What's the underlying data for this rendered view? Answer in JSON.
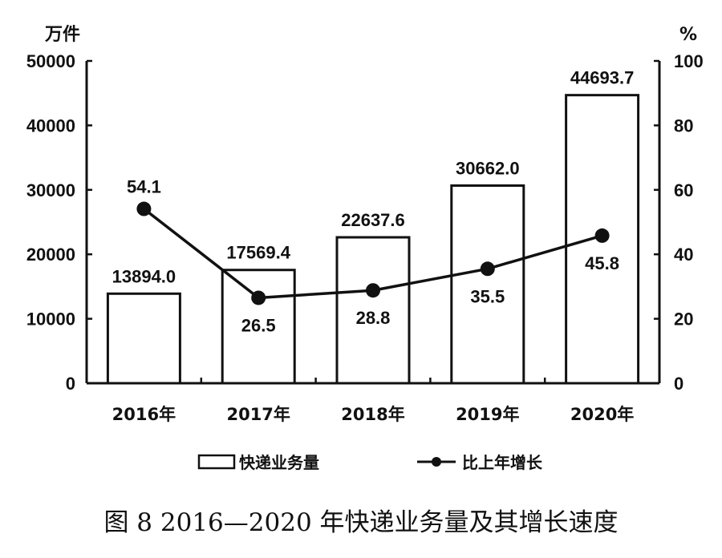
{
  "chart_data": {
    "type": "bar+line",
    "title": "图 8 2016—2020 年快递业务量及其增长速度",
    "categories": [
      "2016年",
      "2017年",
      "2018年",
      "2019年",
      "2020年"
    ],
    "series": [
      {
        "name": "快递业务量",
        "type": "bar",
        "axis": "left",
        "values": [
          13894.0,
          17569.4,
          22637.6,
          30662.0,
          44693.7
        ],
        "labels": [
          "13894.0",
          "17569.4",
          "22637.6",
          "30662.0",
          "44693.7"
        ]
      },
      {
        "name": "比上年增长",
        "type": "line",
        "axis": "right",
        "values": [
          54.1,
          26.5,
          28.8,
          35.5,
          45.8
        ],
        "labels": [
          "54.1",
          "26.5",
          "28.8",
          "35.5",
          "45.8"
        ]
      }
    ],
    "y_left": {
      "label": "万件",
      "ylim": [
        0,
        50000
      ],
      "ticks": [
        "0",
        "10000",
        "20000",
        "30000",
        "40000",
        "50000"
      ]
    },
    "y_right": {
      "label": "%",
      "ylim": [
        0,
        100
      ],
      "ticks": [
        "0",
        "20",
        "40",
        "60",
        "80",
        "100"
      ]
    },
    "grid": false,
    "legend": "bottom"
  }
}
